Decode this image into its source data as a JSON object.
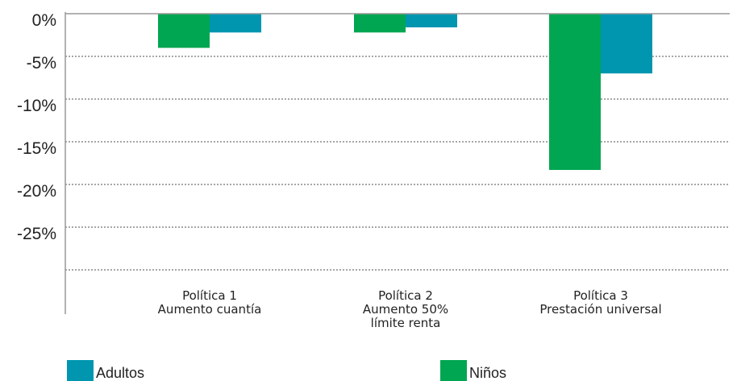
{
  "chart_data": {
    "type": "bar",
    "categories": [
      [
        "Política 1",
        "Aumento cuantía"
      ],
      [
        "Política 2",
        "Aumento 50%",
        "límite renta"
      ],
      [
        "Política 3",
        "Prestación universal"
      ]
    ],
    "series": [
      {
        "name": "Niños",
        "color": "#00A651",
        "values": [
          -4.0,
          -2.2,
          -18.3
        ]
      },
      {
        "name": "Adultos",
        "color": "#0096B0",
        "values": [
          -2.2,
          -1.6,
          -7.0
        ]
      }
    ],
    "y_ticks": [
      "0%",
      "-5%",
      "-10%",
      "-15%",
      "-20%",
      "-25%"
    ],
    "ylim": [
      -30,
      0
    ],
    "grid": "horizontal dotted",
    "legend_position": "bottom",
    "legend": [
      {
        "name": "Adultos",
        "color": "#0096B0"
      },
      {
        "name": "Niños",
        "color": "#00A651"
      }
    ]
  }
}
